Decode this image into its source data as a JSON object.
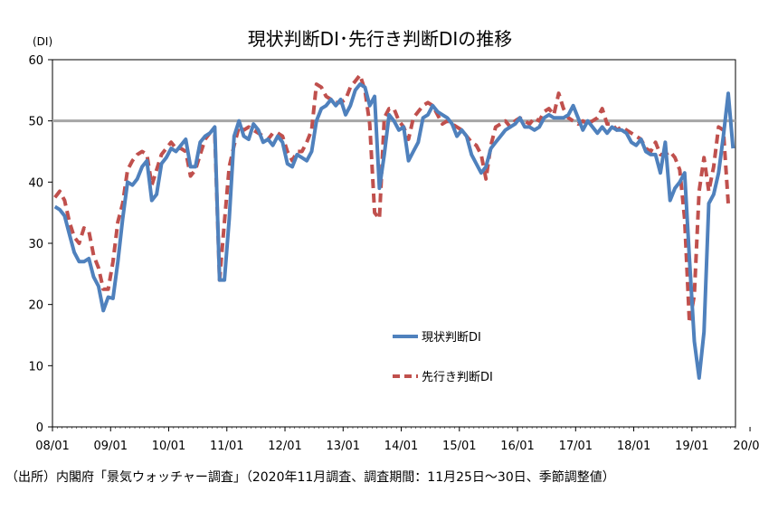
{
  "chart_data": {
    "type": "line",
    "title": "現状判断DI･先行き判断DIの推移",
    "ylabel": "(DI)",
    "ylim": [
      0,
      60
    ],
    "yticks": [
      0,
      10,
      20,
      30,
      40,
      50,
      60
    ],
    "xticks": [
      "08/01",
      "09/01",
      "10/01",
      "11/01",
      "12/01",
      "13/01",
      "14/01",
      "15/01",
      "16/01",
      "17/01",
      "18/01",
      "19/01",
      "20/01"
    ],
    "x_start": "2008-01",
    "reference_line": {
      "value": 50,
      "color": "#a6a6a6"
    },
    "grid": false,
    "legend_position": "bottom-center",
    "series": [
      {
        "name": "現状判断DI",
        "style": "solid",
        "color": "#4f81bd",
        "values": [
          36,
          35.5,
          34.5,
          31.5,
          28.5,
          27,
          27,
          27.5,
          24.5,
          23,
          19,
          21.2,
          21,
          27,
          34,
          40,
          39.5,
          40.5,
          42.5,
          43.5,
          37,
          38,
          43,
          44,
          45.5,
          45,
          46,
          47,
          42.5,
          42.5,
          46.5,
          47.5,
          48,
          49,
          24,
          24,
          34,
          47.5,
          50,
          47.5,
          47,
          49.5,
          48.5,
          46.5,
          47,
          46,
          47.5,
          46.5,
          43,
          42.5,
          44.5,
          44,
          43.5,
          45,
          50,
          52,
          52.5,
          53.5,
          52.5,
          53.5,
          51,
          52.5,
          55,
          56,
          55.5,
          52.5,
          54,
          39,
          44.5,
          51,
          50,
          48.5,
          49,
          43.5,
          45,
          46.5,
          50.5,
          51,
          52.5,
          51.5,
          51,
          50.5,
          49.5,
          47.5,
          48.5,
          47.5,
          44.5,
          43,
          41.5,
          42.5,
          45.5,
          46.5,
          47.5,
          48.5,
          49,
          49.5,
          50.5,
          49,
          49,
          48.5,
          49,
          50.5,
          51,
          50.5,
          50.5,
          50.5,
          51,
          52.5,
          50.5,
          48.5,
          50,
          49,
          48,
          49,
          48,
          49,
          48.5,
          48.5,
          48,
          46.5,
          46,
          47,
          45,
          44.5,
          44.5,
          41.5,
          46.5,
          37,
          39,
          40,
          41.5,
          27.5,
          14,
          8,
          15.5,
          36.5,
          38,
          41.5,
          47.5,
          54.5,
          45.5
        ]
      },
      {
        "name": "先行き判断DI",
        "style": "dashed",
        "color": "#c0504d",
        "values": [
          37.5,
          38.5,
          37,
          33.5,
          31,
          30,
          32.5,
          32,
          28,
          26,
          22.5,
          22.5,
          27,
          33.5,
          36.5,
          42,
          43.5,
          44.5,
          45,
          44.5,
          39.5,
          42,
          44.5,
          45.5,
          46.5,
          45.5,
          45.5,
          45,
          41,
          42,
          44.5,
          47,
          48,
          48,
          24,
          33.5,
          42.5,
          46,
          49,
          48.5,
          49,
          48.5,
          48,
          47.5,
          47,
          48,
          48,
          47.5,
          45,
          43.5,
          45,
          45,
          46.5,
          48.5,
          56,
          55.5,
          54,
          53.5,
          53,
          53,
          53.5,
          55.5,
          56.5,
          57.5,
          55,
          49.5,
          35,
          34,
          50.5,
          52,
          52,
          50,
          49,
          47,
          50.5,
          51.5,
          52.5,
          53,
          52.5,
          51,
          49.5,
          50,
          49.5,
          49,
          48.5,
          47.5,
          46.5,
          46,
          44.5,
          40.5,
          46,
          49,
          49.5,
          50,
          49,
          50,
          50.5,
          50,
          49.5,
          50.5,
          50,
          51.5,
          52,
          51,
          54.5,
          52,
          50.5,
          50,
          49.5,
          50,
          49.5,
          50,
          50.5,
          52,
          49.5,
          49.5,
          48.5,
          49,
          48.5,
          48,
          47.5,
          47,
          45.5,
          45,
          46.5,
          44.5,
          44.5,
          45,
          44,
          42,
          34,
          17,
          21.5,
          38.5,
          44,
          38.5,
          42.5,
          49,
          48.5,
          36.5
        ]
      }
    ]
  },
  "source_note": "（出所）内閣府「景気ウォッチャー調査」（2020年11月調査、調査期間：11月25日～30日、季節調整値）"
}
